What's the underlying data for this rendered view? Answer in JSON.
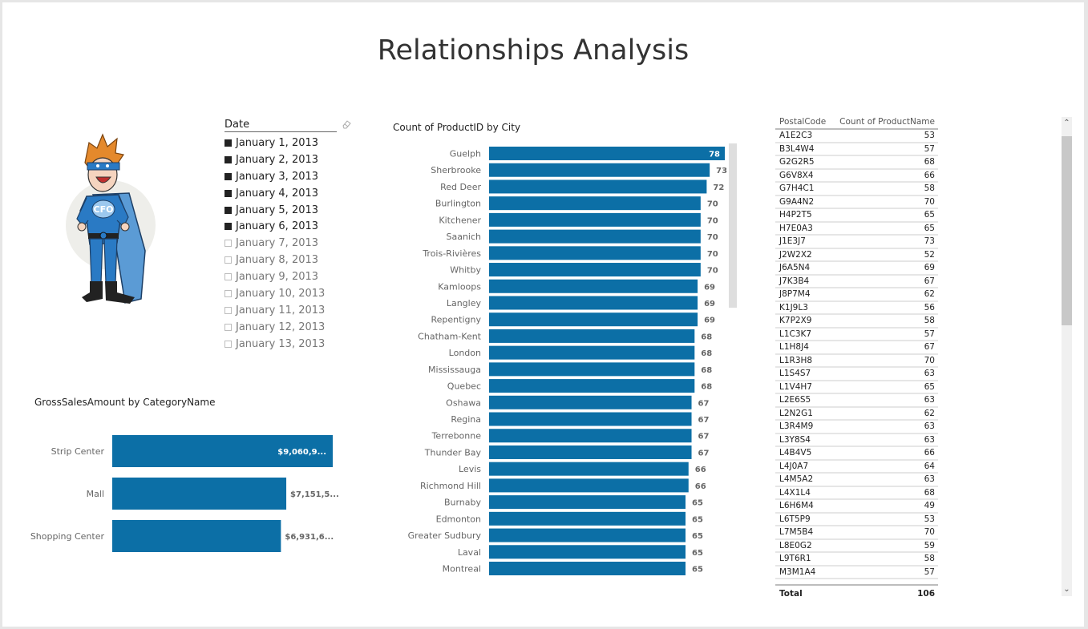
{
  "page": {
    "title": "Relationships Analysis"
  },
  "mascot": {
    "badge_text": "CFO"
  },
  "slicer": {
    "title": "Date",
    "clear_icon": "eraser-icon",
    "items": [
      {
        "label": "January 1, 2013",
        "selected": true
      },
      {
        "label": "January 2, 2013",
        "selected": true
      },
      {
        "label": "January 3, 2013",
        "selected": true
      },
      {
        "label": "January 4, 2013",
        "selected": true
      },
      {
        "label": "January 5, 2013",
        "selected": true
      },
      {
        "label": "January 6, 2013",
        "selected": true
      },
      {
        "label": "January 7, 2013",
        "selected": false
      },
      {
        "label": "January 8, 2013",
        "selected": false
      },
      {
        "label": "January 9, 2013",
        "selected": false
      },
      {
        "label": "January 10, 2013",
        "selected": false
      },
      {
        "label": "January 11, 2013",
        "selected": false
      },
      {
        "label": "January 12, 2013",
        "selected": false
      },
      {
        "label": "January 13, 2013",
        "selected": false
      }
    ]
  },
  "colors": {
    "bar": "#0c6fa6",
    "text_dark": "#222222",
    "text_muted": "#666666"
  },
  "chart_data": [
    {
      "type": "bar",
      "orientation": "horizontal",
      "title": "GrossSalesAmount by CategoryName",
      "xlabel": "",
      "ylabel": "",
      "categories": [
        "Strip Center",
        "Mall",
        "Shopping Center"
      ],
      "values": [
        9060900,
        7151500,
        6931600
      ],
      "value_labels": [
        "$9,060,9...",
        "$7,151,5...",
        "$6,931,6..."
      ],
      "xlim": [
        0,
        9060900
      ],
      "grid": false
    },
    {
      "type": "bar",
      "orientation": "horizontal",
      "title": "Count of ProductID by City",
      "xlabel": "",
      "ylabel": "",
      "categories": [
        "Guelph",
        "Sherbrooke",
        "Red Deer",
        "Burlington",
        "Kitchener",
        "Saanich",
        "Trois-Rivières",
        "Whitby",
        "Kamloops",
        "Langley",
        "Repentigny",
        "Chatham-Kent",
        "London",
        "Mississauga",
        "Quebec",
        "Oshawa",
        "Regina",
        "Terrebonne",
        "Thunder Bay",
        "Levis",
        "Richmond Hill",
        "Burnaby",
        "Edmonton",
        "Greater Sudbury",
        "Laval",
        "Montreal"
      ],
      "values": [
        78,
        73,
        72,
        70,
        70,
        70,
        70,
        70,
        69,
        69,
        69,
        68,
        68,
        68,
        68,
        67,
        67,
        67,
        67,
        66,
        66,
        65,
        65,
        65,
        65,
        65
      ],
      "xlim": [
        0,
        78
      ],
      "grid": false
    },
    {
      "type": "table",
      "columns": [
        "PostalCode",
        "Count of ProductName"
      ],
      "rows": [
        [
          "A1E2C3",
          53
        ],
        [
          "B3L4W4",
          57
        ],
        [
          "G2G2R5",
          68
        ],
        [
          "G6V8X4",
          66
        ],
        [
          "G7H4C1",
          58
        ],
        [
          "G9A4N2",
          70
        ],
        [
          "H4P2T5",
          65
        ],
        [
          "H7E0A3",
          65
        ],
        [
          "J1E3J7",
          73
        ],
        [
          "J2W2X2",
          52
        ],
        [
          "J6A5N4",
          69
        ],
        [
          "J7K3B4",
          67
        ],
        [
          "J8P7M4",
          62
        ],
        [
          "K1J9L3",
          56
        ],
        [
          "K7P2X9",
          58
        ],
        [
          "L1C3K7",
          57
        ],
        [
          "L1H8J4",
          67
        ],
        [
          "L1R3H8",
          70
        ],
        [
          "L1S4S7",
          63
        ],
        [
          "L1V4H7",
          65
        ],
        [
          "L2E6S5",
          63
        ],
        [
          "L2N2G1",
          62
        ],
        [
          "L3R4M9",
          63
        ],
        [
          "L3Y8S4",
          63
        ],
        [
          "L4B4V5",
          66
        ],
        [
          "L4J0A7",
          64
        ],
        [
          "L4M5A2",
          63
        ],
        [
          "L4X1L4",
          68
        ],
        [
          "L6H6M4",
          49
        ],
        [
          "L6T5P9",
          53
        ],
        [
          "L7M5B4",
          70
        ],
        [
          "L8E0G2",
          59
        ],
        [
          "L9T6R1",
          58
        ],
        [
          "M3M1A4",
          57
        ]
      ],
      "total_label": "Total",
      "total_value": 106
    }
  ],
  "scrollbar": {
    "up_icon": "chevron-up-icon",
    "down_icon": "chevron-down-icon",
    "up_glyph": "⌃",
    "down_glyph": "⌄"
  }
}
